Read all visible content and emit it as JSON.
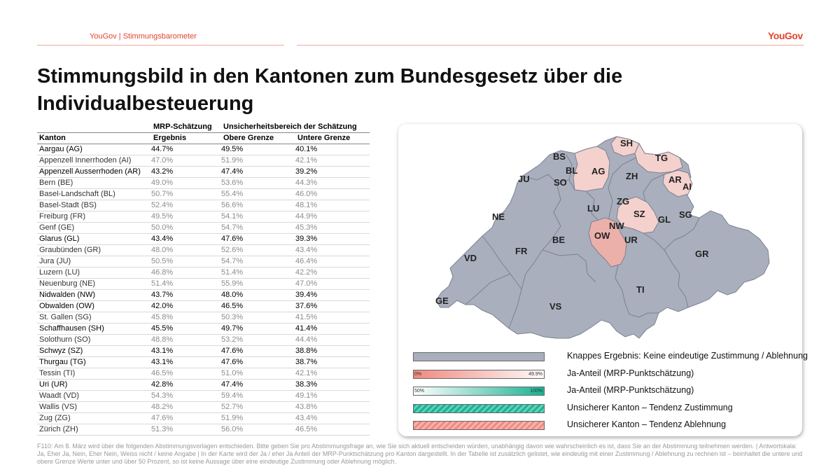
{
  "header": {
    "left_text": "YouGov | Stimmungsbarometer",
    "brand": "YouGov"
  },
  "title": "Stimmungsbild in den Kantonen zum Bundesgesetz über die Individualbesteuerung",
  "table": {
    "group_headers": {
      "mrp": "MRP-Schätzung",
      "uncertainty": "Unsicherheitsbereich der Schätzung"
    },
    "columns": {
      "kanton": "Kanton",
      "ergebnis": "Ergebnis",
      "obere": "Obere Grenze",
      "untere": "Untere Grenze"
    },
    "rows": [
      {
        "kanton": "Aargau (AG)",
        "ergebnis": "44.7%",
        "obere": "49.5%",
        "untere": "40.1%",
        "muted": false
      },
      {
        "kanton": "Appenzell Innerrhoden (AI)",
        "ergebnis": "47.0%",
        "obere": "51.9%",
        "untere": "42.1%",
        "muted": true
      },
      {
        "kanton": "Appenzell Ausserrhoden (AR)",
        "ergebnis": "43.2%",
        "obere": "47.4%",
        "untere": "39.2%",
        "muted": false
      },
      {
        "kanton": "Bern (BE)",
        "ergebnis": "49.0%",
        "obere": "53.6%",
        "untere": "44.3%",
        "muted": true
      },
      {
        "kanton": "Basel-Landschaft (BL)",
        "ergebnis": "50.7%",
        "obere": "55.4%",
        "untere": "46.0%",
        "muted": true
      },
      {
        "kanton": "Basel-Stadt (BS)",
        "ergebnis": "52.4%",
        "obere": "56.6%",
        "untere": "48.1%",
        "muted": true
      },
      {
        "kanton": "Freiburg (FR)",
        "ergebnis": "49.5%",
        "obere": "54.1%",
        "untere": "44.9%",
        "muted": true
      },
      {
        "kanton": "Genf (GE)",
        "ergebnis": "50.0%",
        "obere": "54.7%",
        "untere": "45.3%",
        "muted": true
      },
      {
        "kanton": "Glarus (GL)",
        "ergebnis": "43.4%",
        "obere": "47.6%",
        "untere": "39.3%",
        "muted": false
      },
      {
        "kanton": "Graubünden (GR)",
        "ergebnis": "48.0%",
        "obere": "52.6%",
        "untere": "43.4%",
        "muted": true
      },
      {
        "kanton": "Jura (JU)",
        "ergebnis": "50.5%",
        "obere": "54.7%",
        "untere": "46.4%",
        "muted": true
      },
      {
        "kanton": "Luzern (LU)",
        "ergebnis": "46.8%",
        "obere": "51.4%",
        "untere": "42.2%",
        "muted": true
      },
      {
        "kanton": "Neuenburg (NE)",
        "ergebnis": "51.4%",
        "obere": "55.9%",
        "untere": "47.0%",
        "muted": true
      },
      {
        "kanton": "Nidwalden (NW)",
        "ergebnis": "43.7%",
        "obere": "48.0%",
        "untere": "39.4%",
        "muted": false
      },
      {
        "kanton": "Obwalden (OW)",
        "ergebnis": "42.0%",
        "obere": "46.5%",
        "untere": "37.6%",
        "muted": false
      },
      {
        "kanton": "St. Gallen (SG)",
        "ergebnis": "45.8%",
        "obere": "50.3%",
        "untere": "41.5%",
        "muted": true
      },
      {
        "kanton": "Schaffhausen (SH)",
        "ergebnis": "45.5%",
        "obere": "49.7%",
        "untere": "41.4%",
        "muted": false
      },
      {
        "kanton": "Solothurn (SO)",
        "ergebnis": "48.8%",
        "obere": "53.2%",
        "untere": "44.4%",
        "muted": true
      },
      {
        "kanton": "Schwyz (SZ)",
        "ergebnis": "43.1%",
        "obere": "47.6%",
        "untere": "38.8%",
        "muted": false
      },
      {
        "kanton": "Thurgau (TG)",
        "ergebnis": "43.1%",
        "obere": "47.6%",
        "untere": "38.7%",
        "muted": false
      },
      {
        "kanton": "Tessin (TI)",
        "ergebnis": "46.5%",
        "obere": "51.0%",
        "untere": "42.1%",
        "muted": true
      },
      {
        "kanton": "Uri (UR)",
        "ergebnis": "42.8%",
        "obere": "47.4%",
        "untere": "38.3%",
        "muted": false
      },
      {
        "kanton": "Waadt (VD)",
        "ergebnis": "54.3%",
        "obere": "59.4%",
        "untere": "49.1%",
        "muted": true
      },
      {
        "kanton": "Wallis (VS)",
        "ergebnis": "48.2%",
        "obere": "52.7%",
        "untere": "43.8%",
        "muted": true
      },
      {
        "kanton": "Zug (ZG)",
        "ergebnis": "47.6%",
        "obere": "51.9%",
        "untere": "43.4%",
        "muted": true
      },
      {
        "kanton": "Zürich (ZH)",
        "ergebnis": "51.3%",
        "obere": "56.0%",
        "untere": "46.5%",
        "muted": true
      }
    ]
  },
  "map": {
    "labels": [
      "SH",
      "BS",
      "TG",
      "BL",
      "AG",
      "ZH",
      "JU",
      "SO",
      "AR",
      "AI",
      "ZG",
      "LU",
      "SZ",
      "SG",
      "GL",
      "NE",
      "NW",
      "OW",
      "UR",
      "BE",
      "FR",
      "GR",
      "VD",
      "TI",
      "GE",
      "VS"
    ],
    "colors": {
      "neutral": "#a9afbd",
      "reject_light": "#f5d1ce",
      "reject_mid": "#ebb0aa",
      "border": "#7a8190"
    }
  },
  "legend": {
    "items": [
      {
        "text": "Knappes Ergebnis: Keine eindeutige Zustimmung / Ablehnung"
      },
      {
        "text": "Ja-Anteil (MRP-Punktschätzung)",
        "min": "0%",
        "max": "49.9%"
      },
      {
        "text": "Ja-Anteil (MRP-Punktschätzung)",
        "min": "50%",
        "max": "100%"
      },
      {
        "text": "Unsicherer Kanton – Tendenz Zustimmung"
      },
      {
        "text": "Unsicherer Kanton – Tendenz Ablehnung"
      }
    ]
  },
  "footnote": "F110: Am 8. März wird über die folgenden Abstimmungsvorlagen entschieden. Bitte geben Sie pro Abstimmungsfrage an, wie Sie sich aktuell entscheiden würden, unabhängig davon wie wahrscheinlich es ist, dass Sie an der Abstimmung teilnehmen werden. | Antwortskala: Ja, Eher Ja, Nein, Eher Nein, Weiss nicht / keine Angabe | In der Karte wird der Ja / eher Ja Anteil der MRP-Punktschätzung pro Kanton dargestellt. In der Tabelle ist zusätzlich gelistet, wie eindeutig mit einer Zustimmung / Ablehnung zu rechnen ist – beinhaltet die untere und obere Grenze Werte unter und über 50 Prozent, so ist keine Aussage über eine eindeutige Zustimmung oder Ablehnung möglich."
}
